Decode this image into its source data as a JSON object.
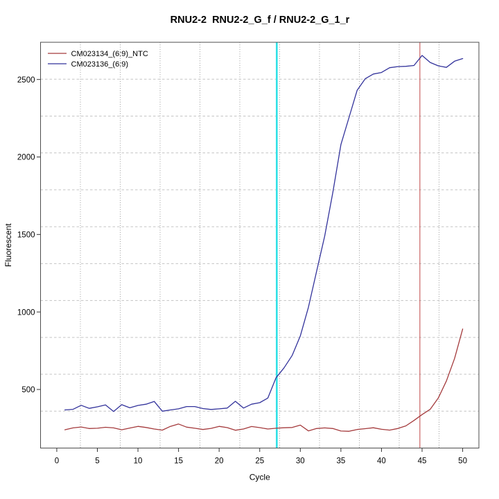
{
  "chart_data": {
    "type": "line",
    "title": "RNU2-2  RNU2-2_G_f / RNU2-2_G_1_r",
    "xlabel": "Cycle",
    "ylabel": "Fluorescent",
    "xlim": [
      -2,
      52
    ],
    "ylim": [
      122,
      2740
    ],
    "x_ticks": [
      0,
      5,
      10,
      15,
      20,
      25,
      30,
      35,
      40,
      45,
      50
    ],
    "y_ticks": [
      500,
      1000,
      1500,
      2000,
      2500
    ],
    "grid": {
      "nx": 11,
      "ny": 11,
      "visible": true
    },
    "legend_position": "top-left",
    "vlines": [
      {
        "x": 27.1,
        "color": "#2fe0e6",
        "width": 2.6,
        "label": "cyan-threshold-marker"
      },
      {
        "x": 44.73,
        "color": "#c45555",
        "width": 1.1,
        "label": "red-cycle-marker"
      }
    ],
    "cycles": [
      1,
      2,
      3,
      4,
      5,
      6,
      7,
      8,
      9,
      10,
      11,
      12,
      13,
      14,
      15,
      16,
      17,
      18,
      19,
      20,
      21,
      22,
      23,
      24,
      25,
      26,
      27,
      28,
      29,
      30,
      31,
      32,
      33,
      34,
      35,
      36,
      37,
      38,
      39,
      40,
      41,
      42,
      43,
      44,
      45,
      46,
      47,
      48,
      49,
      50
    ],
    "series": [
      {
        "name": "CM023134_(6:9)_NTC",
        "color": "#a43a3c",
        "values": [
          240,
          252,
          258,
          248,
          250,
          256,
          252,
          240,
          251,
          262,
          255,
          245,
          238,
          262,
          277,
          257,
          250,
          242,
          249,
          262,
          254,
          237,
          245,
          261,
          254,
          245,
          250,
          253,
          255,
          270,
          233,
          248,
          252,
          248,
          232,
          230,
          242,
          247,
          253,
          243,
          238,
          248,
          265,
          300,
          338,
          372,
          445,
          555,
          700,
          890
        ]
      },
      {
        "name": "CM023136_(6:9)",
        "color": "#32329b",
        "values": [
          368,
          372,
          398,
          378,
          388,
          400,
          358,
          402,
          382,
          397,
          405,
          423,
          360,
          368,
          375,
          390,
          390,
          377,
          371,
          375,
          380,
          424,
          380,
          405,
          415,
          445,
          575,
          640,
          720,
          845,
          1030,
          1260,
          1490,
          1770,
          2080,
          2255,
          2430,
          2505,
          2535,
          2545,
          2576,
          2583,
          2585,
          2590,
          2655,
          2610,
          2588,
          2578,
          2618,
          2635
        ]
      }
    ]
  }
}
